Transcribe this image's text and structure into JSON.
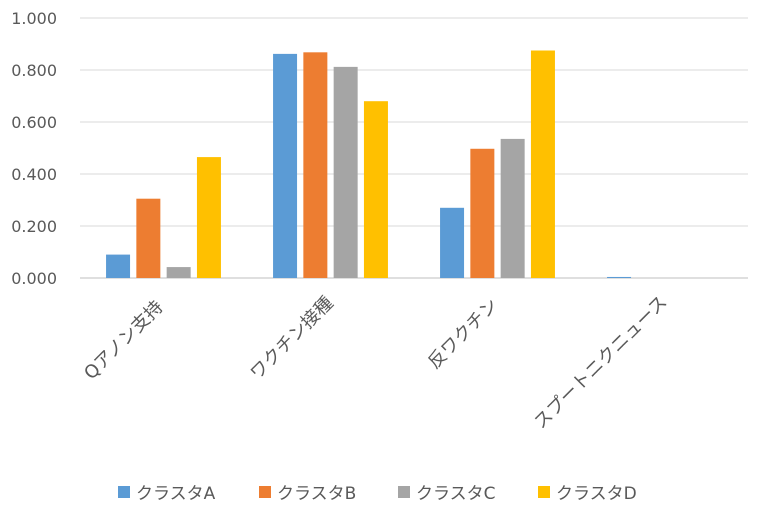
{
  "chart_data": {
    "type": "bar",
    "title": "",
    "xlabel": "",
    "ylabel": "",
    "ylim": [
      0,
      1.0
    ],
    "yticks": [
      "0.000",
      "0.200",
      "0.400",
      "0.600",
      "0.800",
      "1.000"
    ],
    "categories": [
      "Qアノン支持",
      "ワクチン接種",
      "反ワクチン",
      "スプートニクニュース"
    ],
    "series": [
      {
        "name": "クラスタA",
        "color": "#5b9bd5",
        "values": [
          0.09,
          0.862,
          0.27,
          0.004
        ]
      },
      {
        "name": "クラスタB",
        "color": "#ed7d31",
        "values": [
          0.305,
          0.868,
          0.497,
          0.0
        ]
      },
      {
        "name": "クラスタC",
        "color": "#a5a5a5",
        "values": [
          0.042,
          0.812,
          0.535,
          0.0
        ]
      },
      {
        "name": "クラスタD",
        "color": "#ffc000",
        "values": [
          0.465,
          0.68,
          0.875,
          0.0
        ]
      }
    ],
    "grid": true,
    "legend": "bottom"
  }
}
